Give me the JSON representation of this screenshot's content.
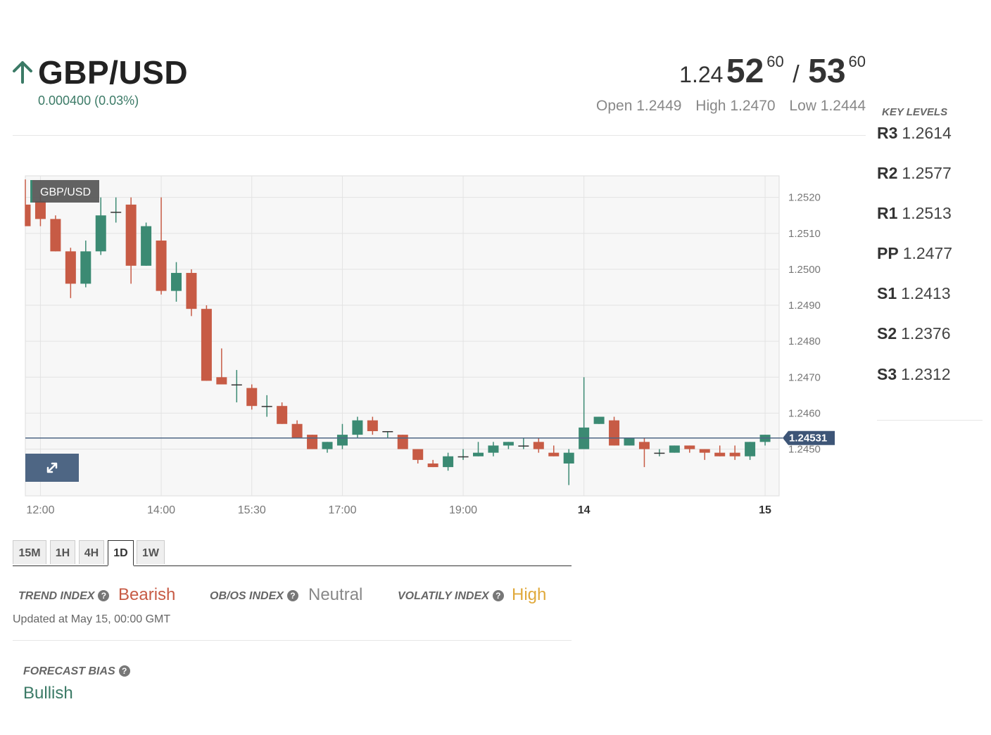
{
  "header": {
    "pair": "GBP/USD",
    "change": "0.000400 (0.03%)",
    "quote": {
      "prefix": "1.24",
      "bid_big": "52",
      "bid_pip": "60",
      "separator": "/",
      "ask_big": "53",
      "ask_pip": "60"
    },
    "open": "Open 1.2449",
    "high": "High 1.2470",
    "low": "Low 1.2444"
  },
  "key_levels": {
    "title": "KEY LEVELS",
    "items": [
      {
        "label": "R3",
        "value": "1.2614"
      },
      {
        "label": "R2",
        "value": "1.2577"
      },
      {
        "label": "R1",
        "value": "1.2513"
      },
      {
        "label": "PP",
        "value": "1.2477"
      },
      {
        "label": "S1",
        "value": "1.2413"
      },
      {
        "label": "S2",
        "value": "1.2376"
      },
      {
        "label": "S3",
        "value": "1.2312"
      }
    ]
  },
  "timeframes": {
    "tabs": [
      "15M",
      "1H",
      "4H",
      "1D",
      "1W"
    ],
    "active": "1D"
  },
  "indexes": {
    "trend": {
      "label": "TREND INDEX",
      "value": "Bearish",
      "color": "#c75b45"
    },
    "obos": {
      "label": "OB/OS INDEX",
      "value": "Neutral",
      "color": "#888888"
    },
    "volatility": {
      "label": "VOLATILY INDEX",
      "value": "High",
      "color": "#e0a93b"
    },
    "updated": "Updated at May 15, 00:00 GMT"
  },
  "forecast": {
    "label": "FORECAST BIAS",
    "value": "Bullish",
    "color": "#3b7a66"
  },
  "icons": {
    "direction": "arrow-up-icon",
    "help": "question-icon",
    "expand": "expand-icon"
  },
  "colors": {
    "up": "#3b8a73",
    "down": "#c75b45",
    "price_line": "#4e6684",
    "accent_green": "#3b7a66"
  },
  "chart_data": {
    "type": "candlestick",
    "legend": "GBP/USD",
    "last_price": 1.24531,
    "last_price_label": "1.24531",
    "ylim": [
      1.2437,
      1.2526
    ],
    "y_ticks": [
      1.252,
      1.251,
      1.25,
      1.249,
      1.248,
      1.247,
      1.246,
      1.245
    ],
    "y_tick_labels": [
      "1.2520",
      "1.2510",
      "1.2500",
      "1.2490",
      "1.2480",
      "1.2470",
      "1.2460",
      "1.2450"
    ],
    "x_ticks": [
      {
        "label": "12:00",
        "index": 1,
        "bold": false
      },
      {
        "label": "14:00",
        "index": 9,
        "bold": false
      },
      {
        "label": "15:30",
        "index": 15,
        "bold": false
      },
      {
        "label": "17:00",
        "index": 21,
        "bold": false
      },
      {
        "label": "19:00",
        "index": 29,
        "bold": false
      },
      {
        "label": "14",
        "index": 37,
        "bold": true
      },
      {
        "label": "15",
        "index": 49,
        "bold": true
      }
    ],
    "candles": [
      {
        "o": 1.2518,
        "h": 1.2525,
        "l": 1.2512,
        "c": 1.2512
      },
      {
        "o": 1.2519,
        "h": 1.2521,
        "l": 1.2512,
        "c": 1.2514
      },
      {
        "o": 1.2514,
        "h": 1.2515,
        "l": 1.2505,
        "c": 1.2505
      },
      {
        "o": 1.2505,
        "h": 1.2506,
        "l": 1.2492,
        "c": 1.2496
      },
      {
        "o": 1.2496,
        "h": 1.2508,
        "l": 1.2495,
        "c": 1.2505
      },
      {
        "o": 1.2505,
        "h": 1.252,
        "l": 1.2504,
        "c": 1.2515
      },
      {
        "o": 1.2516,
        "h": 1.252,
        "l": 1.2513,
        "c": 1.2516
      },
      {
        "o": 1.2518,
        "h": 1.252,
        "l": 1.2496,
        "c": 1.2501
      },
      {
        "o": 1.2501,
        "h": 1.2513,
        "l": 1.2501,
        "c": 1.2512
      },
      {
        "o": 1.2508,
        "h": 1.252,
        "l": 1.2493,
        "c": 1.2494
      },
      {
        "o": 1.2494,
        "h": 1.2502,
        "l": 1.2491,
        "c": 1.2499
      },
      {
        "o": 1.2499,
        "h": 1.25,
        "l": 1.2487,
        "c": 1.2489
      },
      {
        "o": 1.2489,
        "h": 1.249,
        "l": 1.2469,
        "c": 1.2469
      },
      {
        "o": 1.247,
        "h": 1.2478,
        "l": 1.2468,
        "c": 1.2468
      },
      {
        "o": 1.2468,
        "h": 1.2472,
        "l": 1.2463,
        "c": 1.2468
      },
      {
        "o": 1.2467,
        "h": 1.2468,
        "l": 1.2461,
        "c": 1.2462
      },
      {
        "o": 1.2462,
        "h": 1.2465,
        "l": 1.2459,
        "c": 1.2462
      },
      {
        "o": 1.2462,
        "h": 1.2463,
        "l": 1.2457,
        "c": 1.2457
      },
      {
        "o": 1.2457,
        "h": 1.2458,
        "l": 1.2453,
        "c": 1.2453
      },
      {
        "o": 1.2454,
        "h": 1.2454,
        "l": 1.245,
        "c": 1.245
      },
      {
        "o": 1.245,
        "h": 1.2452,
        "l": 1.2449,
        "c": 1.2452
      },
      {
        "o": 1.2451,
        "h": 1.2457,
        "l": 1.245,
        "c": 1.2454
      },
      {
        "o": 1.2454,
        "h": 1.2459,
        "l": 1.2453,
        "c": 1.2458
      },
      {
        "o": 1.2458,
        "h": 1.2459,
        "l": 1.2454,
        "c": 1.2455
      },
      {
        "o": 1.2455,
        "h": 1.2455,
        "l": 1.2453,
        "c": 1.2455
      },
      {
        "o": 1.2454,
        "h": 1.2454,
        "l": 1.245,
        "c": 1.245
      },
      {
        "o": 1.245,
        "h": 1.245,
        "l": 1.2446,
        "c": 1.2447
      },
      {
        "o": 1.2446,
        "h": 1.2447,
        "l": 1.2445,
        "c": 1.2445
      },
      {
        "o": 1.2445,
        "h": 1.2449,
        "l": 1.2444,
        "c": 1.2448
      },
      {
        "o": 1.2448,
        "h": 1.245,
        "l": 1.2447,
        "c": 1.2448
      },
      {
        "o": 1.2448,
        "h": 1.2452,
        "l": 1.2448,
        "c": 1.2449
      },
      {
        "o": 1.2449,
        "h": 1.2452,
        "l": 1.2448,
        "c": 1.2451
      },
      {
        "o": 1.2451,
        "h": 1.2452,
        "l": 1.245,
        "c": 1.2452
      },
      {
        "o": 1.2451,
        "h": 1.2453,
        "l": 1.245,
        "c": 1.2451
      },
      {
        "o": 1.2452,
        "h": 1.2453,
        "l": 1.2449,
        "c": 1.245
      },
      {
        "o": 1.2449,
        "h": 1.2451,
        "l": 1.2448,
        "c": 1.2448
      },
      {
        "o": 1.2446,
        "h": 1.245,
        "l": 1.244,
        "c": 1.2449
      },
      {
        "o": 1.245,
        "h": 1.247,
        "l": 1.245,
        "c": 1.2456
      },
      {
        "o": 1.2457,
        "h": 1.2459,
        "l": 1.2457,
        "c": 1.2459
      },
      {
        "o": 1.2458,
        "h": 1.2459,
        "l": 1.2451,
        "c": 1.2451
      },
      {
        "o": 1.2451,
        "h": 1.2453,
        "l": 1.2451,
        "c": 1.2453
      },
      {
        "o": 1.2452,
        "h": 1.2453,
        "l": 1.2445,
        "c": 1.245
      },
      {
        "o": 1.2449,
        "h": 1.245,
        "l": 1.2448,
        "c": 1.2449
      },
      {
        "o": 1.2449,
        "h": 1.2451,
        "l": 1.2449,
        "c": 1.2451
      },
      {
        "o": 1.2451,
        "h": 1.2451,
        "l": 1.2449,
        "c": 1.245
      },
      {
        "o": 1.245,
        "h": 1.245,
        "l": 1.2447,
        "c": 1.2449
      },
      {
        "o": 1.2449,
        "h": 1.2451,
        "l": 1.2448,
        "c": 1.2448
      },
      {
        "o": 1.2449,
        "h": 1.2451,
        "l": 1.2447,
        "c": 1.2448
      },
      {
        "o": 1.2448,
        "h": 1.2452,
        "l": 1.2447,
        "c": 1.2452
      },
      {
        "o": 1.2452,
        "h": 1.2454,
        "l": 1.2451,
        "c": 1.2454
      }
    ]
  }
}
